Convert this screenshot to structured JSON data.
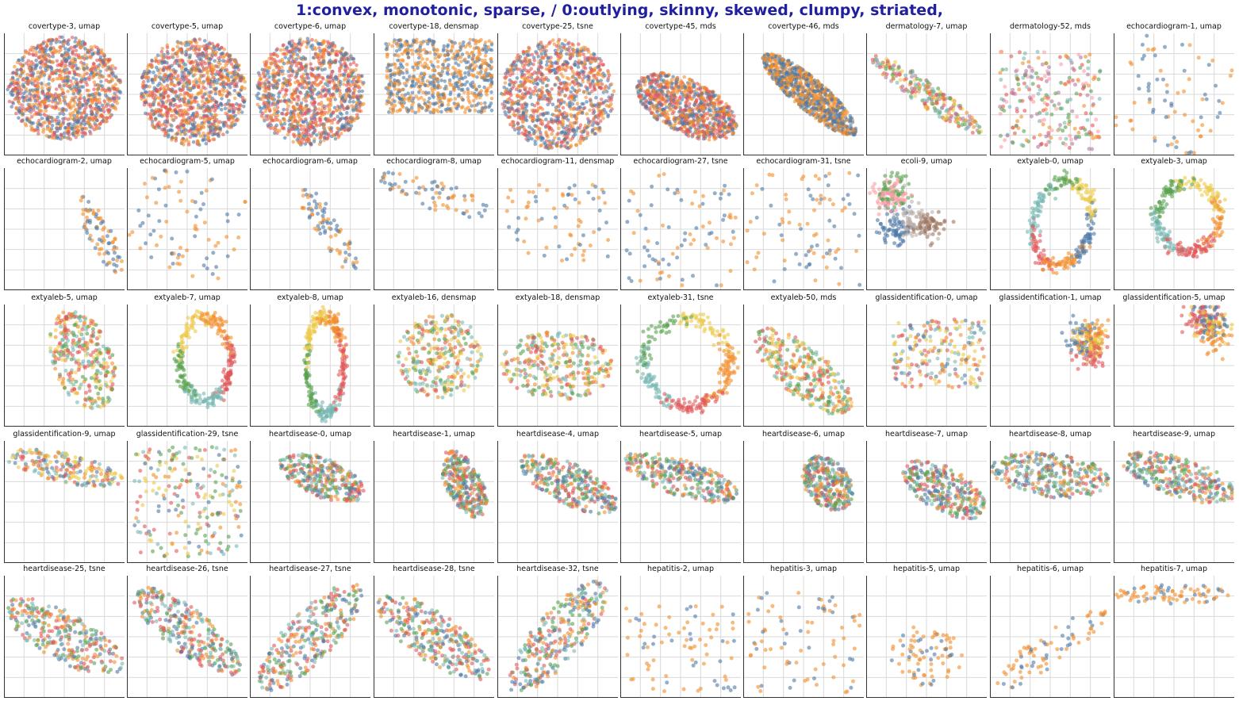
{
  "header": {
    "title": "1:convex, monotonic, sparse,  / 0:outlying, skinny, skewed, clumpy, striated,"
  },
  "colors": {
    "palette": [
      "#4e79a7",
      "#f28e2b",
      "#e15759",
      "#76b7b2",
      "#59a14f",
      "#edc948",
      "#b07aa1",
      "#ff9da7",
      "#9c755f",
      "#bab0ac"
    ],
    "gridline": "#d9d9d9",
    "axis": "#333333",
    "title": "#1f1fa0"
  },
  "chart_data": {
    "type": "scatter",
    "grid": true,
    "point_alpha": 0.6,
    "panels": [
      {
        "title": "covertype-3, umap",
        "shape": "blob",
        "n": 1100,
        "cx": 0.5,
        "cy": 0.45,
        "rx": 0.47,
        "ry": 0.42,
        "rot": 0,
        "colors": [
          0,
          1,
          2
        ]
      },
      {
        "title": "covertype-5, umap",
        "shape": "blob",
        "n": 1100,
        "cx": 0.55,
        "cy": 0.48,
        "rx": 0.44,
        "ry": 0.44,
        "rot": 0,
        "colors": [
          0,
          1,
          2
        ]
      },
      {
        "title": "covertype-6, umap",
        "shape": "blob",
        "n": 1100,
        "cx": 0.5,
        "cy": 0.48,
        "rx": 0.46,
        "ry": 0.44,
        "rot": 0,
        "colors": [
          0,
          1,
          2
        ]
      },
      {
        "title": "covertype-18, densmap",
        "shape": "scatter",
        "n": 700,
        "cx": 0.55,
        "cy": 0.35,
        "rx": 0.45,
        "ry": 0.3,
        "rot": 0,
        "colors": [
          0,
          1
        ]
      },
      {
        "title": "covertype-25, tsne",
        "shape": "blob",
        "n": 1000,
        "cx": 0.5,
        "cy": 0.5,
        "rx": 0.47,
        "ry": 0.45,
        "rot": 0,
        "colors": [
          0,
          1,
          2
        ]
      },
      {
        "title": "covertype-45, mds",
        "shape": "ellipse",
        "n": 900,
        "cx": 0.55,
        "cy": 0.6,
        "rx": 0.45,
        "ry": 0.22,
        "rot": 0.45,
        "colors": [
          0,
          1,
          2
        ]
      },
      {
        "title": "covertype-46, mds",
        "shape": "ellipse",
        "n": 900,
        "cx": 0.55,
        "cy": 0.5,
        "rx": 0.5,
        "ry": 0.13,
        "rot": 0.7,
        "colors": [
          0,
          1
        ]
      },
      {
        "title": "dermatology-7, umap",
        "shape": "ellipse",
        "n": 240,
        "cx": 0.5,
        "cy": 0.5,
        "rx": 0.55,
        "ry": 0.1,
        "rot": 0.6,
        "colors": [
          1,
          2,
          3,
          4,
          5,
          6
        ]
      },
      {
        "title": "dermatology-52, mds",
        "shape": "scatter",
        "n": 240,
        "cx": 0.5,
        "cy": 0.55,
        "rx": 0.42,
        "ry": 0.4,
        "rot": 0,
        "colors": [
          1,
          2,
          3,
          4,
          6,
          7
        ]
      },
      {
        "title": "echocardiogram-1, umap",
        "shape": "scatter",
        "n": 75,
        "cx": 0.5,
        "cy": 0.5,
        "rx": 0.45,
        "ry": 0.45,
        "rot": 0.4,
        "colors": [
          0,
          1
        ]
      },
      {
        "title": "echocardiogram-2, umap",
        "shape": "ellipse",
        "n": 80,
        "cx": 0.8,
        "cy": 0.55,
        "rx": 0.35,
        "ry": 0.1,
        "rot": 1.1,
        "colors": [
          0,
          1
        ]
      },
      {
        "title": "echocardiogram-5, umap",
        "shape": "scatter",
        "n": 80,
        "cx": 0.5,
        "cy": 0.45,
        "rx": 0.45,
        "ry": 0.42,
        "rot": 0.4,
        "colors": [
          0,
          1
        ]
      },
      {
        "title": "echocardiogram-6, umap",
        "shape": "ellipse",
        "n": 80,
        "cx": 0.65,
        "cy": 0.5,
        "rx": 0.4,
        "ry": 0.12,
        "rot": 1.0,
        "colors": [
          0,
          1
        ]
      },
      {
        "title": "echocardiogram-8, umap",
        "shape": "ellipse",
        "n": 70,
        "cx": 0.5,
        "cy": 0.22,
        "rx": 0.5,
        "ry": 0.12,
        "rot": 0.3,
        "colors": [
          0,
          1
        ]
      },
      {
        "title": "echocardiogram-11, densmap",
        "shape": "scatter",
        "n": 70,
        "cx": 0.5,
        "cy": 0.45,
        "rx": 0.42,
        "ry": 0.32,
        "rot": 0,
        "colors": [
          0,
          1
        ]
      },
      {
        "title": "echocardiogram-27, tsne",
        "shape": "scatter",
        "n": 85,
        "cx": 0.5,
        "cy": 0.5,
        "rx": 0.46,
        "ry": 0.46,
        "rot": 0,
        "colors": [
          0,
          1
        ]
      },
      {
        "title": "echocardiogram-31, tsne",
        "shape": "scatter",
        "n": 85,
        "cx": 0.5,
        "cy": 0.5,
        "rx": 0.47,
        "ry": 0.46,
        "rot": 0,
        "colors": [
          0,
          1
        ]
      },
      {
        "title": "ecoli-9, umap",
        "shape": "clusters",
        "n": 330,
        "cx": 0.5,
        "cy": 0.4,
        "rx": 0.45,
        "ry": 0.3,
        "rot": 0,
        "colors": [
          0,
          7,
          4,
          9,
          8
        ]
      },
      {
        "title": "extyaleb-0, umap",
        "shape": "ring",
        "n": 300,
        "cx": 0.6,
        "cy": 0.45,
        "rx": 0.28,
        "ry": 0.42,
        "rot": 0.2,
        "colors": [
          0,
          1,
          2,
          3,
          4,
          5
        ]
      },
      {
        "title": "extyaleb-3, umap",
        "shape": "ring",
        "n": 300,
        "cx": 0.62,
        "cy": 0.4,
        "rx": 0.3,
        "ry": 0.33,
        "rot": 0,
        "colors": [
          1,
          2,
          3,
          4,
          5
        ]
      },
      {
        "title": "extyaleb-5, umap",
        "shape": "ellipse",
        "n": 330,
        "cx": 0.65,
        "cy": 0.45,
        "rx": 0.42,
        "ry": 0.25,
        "rot": 1.2,
        "colors": [
          2,
          3,
          4,
          5,
          1
        ]
      },
      {
        "title": "extyaleb-7, umap",
        "shape": "ring",
        "n": 300,
        "cx": 0.65,
        "cy": 0.45,
        "rx": 0.25,
        "ry": 0.4,
        "rot": 0,
        "colors": [
          2,
          3,
          4,
          5,
          1
        ]
      },
      {
        "title": "extyaleb-8, umap",
        "shape": "ring",
        "n": 320,
        "cx": 0.62,
        "cy": 0.5,
        "rx": 0.18,
        "ry": 0.47,
        "rot": 0,
        "colors": [
          2,
          3,
          4,
          5,
          1
        ]
      },
      {
        "title": "extyaleb-16, densmap",
        "shape": "blob",
        "n": 300,
        "cx": 0.55,
        "cy": 0.42,
        "rx": 0.35,
        "ry": 0.35,
        "rot": 0,
        "colors": [
          1,
          2,
          3,
          4,
          5
        ]
      },
      {
        "title": "extyaleb-18, densmap",
        "shape": "ellipse",
        "n": 320,
        "cx": 0.5,
        "cy": 0.5,
        "rx": 0.47,
        "ry": 0.28,
        "rot": 0,
        "colors": [
          1,
          2,
          3,
          4,
          5
        ]
      },
      {
        "title": "extyaleb-31, tsne",
        "shape": "ring",
        "n": 300,
        "cx": 0.55,
        "cy": 0.48,
        "rx": 0.42,
        "ry": 0.42,
        "rot": 0,
        "colors": [
          1,
          2,
          3,
          4,
          5
        ]
      },
      {
        "title": "extyaleb-50, mds",
        "shape": "ellipse",
        "n": 320,
        "cx": 0.5,
        "cy": 0.55,
        "rx": 0.5,
        "ry": 0.2,
        "rot": 0.7,
        "colors": [
          1,
          2,
          3,
          4,
          5
        ]
      },
      {
        "title": "glassidentification-0, umap",
        "shape": "scatter",
        "n": 210,
        "cx": 0.6,
        "cy": 0.4,
        "rx": 0.38,
        "ry": 0.28,
        "rot": 0,
        "colors": [
          0,
          1,
          2,
          3,
          5
        ]
      },
      {
        "title": "glassidentification-1, umap",
        "shape": "clusters",
        "n": 210,
        "cx": 0.8,
        "cy": 0.27,
        "rx": 0.15,
        "ry": 0.2,
        "rot": 0,
        "colors": [
          0,
          2,
          5,
          1
        ]
      },
      {
        "title": "glassidentification-5, umap",
        "shape": "clusters",
        "n": 210,
        "cx": 0.7,
        "cy": 0.25,
        "rx": 0.25,
        "ry": 0.2,
        "rot": 0,
        "colors": [
          0,
          2,
          5,
          1
        ]
      },
      {
        "title": "glassidentification-9, umap",
        "shape": "ellipse",
        "n": 210,
        "cx": 0.5,
        "cy": 0.22,
        "rx": 0.5,
        "ry": 0.12,
        "rot": 0.2,
        "colors": [
          0,
          1,
          2,
          3,
          5
        ]
      },
      {
        "title": "glassidentification-29, tsne",
        "shape": "scatter",
        "n": 210,
        "cx": 0.5,
        "cy": 0.5,
        "rx": 0.45,
        "ry": 0.45,
        "rot": 0,
        "colors": [
          0,
          1,
          2,
          3,
          5,
          4
        ]
      },
      {
        "title": "heartdisease-0, umap",
        "shape": "ellipse",
        "n": 300,
        "cx": 0.6,
        "cy": 0.3,
        "rx": 0.38,
        "ry": 0.16,
        "rot": 0.4,
        "colors": [
          0,
          1,
          2,
          3,
          4
        ]
      },
      {
        "title": "heartdisease-1, umap",
        "shape": "ellipse",
        "n": 300,
        "cx": 0.75,
        "cy": 0.35,
        "rx": 0.3,
        "ry": 0.15,
        "rot": 1.1,
        "colors": [
          0,
          1,
          2,
          3,
          4
        ]
      },
      {
        "title": "heartdisease-4, umap",
        "shape": "ellipse",
        "n": 300,
        "cx": 0.6,
        "cy": 0.35,
        "rx": 0.45,
        "ry": 0.17,
        "rot": 0.45,
        "colors": [
          0,
          1,
          2,
          3,
          4
        ]
      },
      {
        "title": "heartdisease-5, umap",
        "shape": "ellipse",
        "n": 300,
        "cx": 0.5,
        "cy": 0.3,
        "rx": 0.5,
        "ry": 0.15,
        "rot": 0.3,
        "colors": [
          0,
          1,
          2,
          3,
          4
        ]
      },
      {
        "title": "heartdisease-6, umap",
        "shape": "ellipse",
        "n": 300,
        "cx": 0.7,
        "cy": 0.35,
        "rx": 0.25,
        "ry": 0.18,
        "rot": 0.9,
        "colors": [
          0,
          1,
          2,
          3,
          4
        ]
      },
      {
        "title": "heartdisease-7, umap",
        "shape": "ellipse",
        "n": 300,
        "cx": 0.65,
        "cy": 0.4,
        "rx": 0.38,
        "ry": 0.18,
        "rot": 0.5,
        "colors": [
          0,
          1,
          2,
          3,
          4
        ]
      },
      {
        "title": "heartdisease-8, umap",
        "shape": "ellipse",
        "n": 300,
        "cx": 0.5,
        "cy": 0.28,
        "rx": 0.5,
        "ry": 0.18,
        "rot": 0.1,
        "colors": [
          0,
          1,
          2,
          3,
          4
        ]
      },
      {
        "title": "heartdisease-9, umap",
        "shape": "ellipse",
        "n": 300,
        "cx": 0.55,
        "cy": 0.3,
        "rx": 0.5,
        "ry": 0.16,
        "rot": 0.3,
        "colors": [
          0,
          1,
          2,
          3,
          4
        ]
      },
      {
        "title": "heartdisease-25, tsne",
        "shape": "ellipse",
        "n": 300,
        "cx": 0.5,
        "cy": 0.5,
        "rx": 0.55,
        "ry": 0.2,
        "rot": 0.5,
        "colors": [
          0,
          1,
          2,
          3,
          4
        ]
      },
      {
        "title": "heartdisease-26, tsne",
        "shape": "ellipse",
        "n": 300,
        "cx": 0.5,
        "cy": 0.45,
        "rx": 0.55,
        "ry": 0.18,
        "rot": 0.65,
        "colors": [
          0,
          1,
          2,
          3,
          4
        ]
      },
      {
        "title": "heartdisease-27, tsne",
        "shape": "ellipse",
        "n": 300,
        "cx": 0.5,
        "cy": 0.5,
        "rx": 0.58,
        "ry": 0.2,
        "rot": -0.8,
        "colors": [
          0,
          1,
          2,
          3,
          4
        ]
      },
      {
        "title": "heartdisease-28, tsne",
        "shape": "ellipse",
        "n": 300,
        "cx": 0.5,
        "cy": 0.5,
        "rx": 0.55,
        "ry": 0.2,
        "rot": 0.6,
        "colors": [
          0,
          1,
          2,
          3,
          4
        ]
      },
      {
        "title": "heartdisease-32, tsne",
        "shape": "ellipse",
        "n": 300,
        "cx": 0.5,
        "cy": 0.5,
        "rx": 0.58,
        "ry": 0.2,
        "rot": -0.85,
        "colors": [
          0,
          1,
          2,
          3,
          4
        ]
      },
      {
        "title": "hepatitis-2, umap",
        "shape": "scatter",
        "n": 80,
        "cx": 0.5,
        "cy": 0.6,
        "rx": 0.45,
        "ry": 0.35,
        "rot": 0,
        "colors": [
          1,
          1,
          0
        ]
      },
      {
        "title": "hepatitis-3, umap",
        "shape": "scatter",
        "n": 80,
        "cx": 0.5,
        "cy": 0.55,
        "rx": 0.47,
        "ry": 0.42,
        "rot": 0,
        "colors": [
          1,
          1,
          0
        ]
      },
      {
        "title": "hepatitis-5, umap",
        "shape": "blob",
        "n": 80,
        "cx": 0.5,
        "cy": 0.65,
        "rx": 0.3,
        "ry": 0.25,
        "rot": 0,
        "colors": [
          1,
          1,
          0
        ]
      },
      {
        "title": "hepatitis-6, umap",
        "shape": "ellipse",
        "n": 80,
        "cx": 0.5,
        "cy": 0.6,
        "rx": 0.55,
        "ry": 0.14,
        "rot": -0.6,
        "colors": [
          1,
          1,
          0
        ]
      },
      {
        "title": "hepatitis-7, umap",
        "shape": "ellipse",
        "n": 80,
        "cx": 0.5,
        "cy": 0.15,
        "rx": 0.5,
        "ry": 0.08,
        "rot": 0,
        "colors": [
          1,
          1,
          0
        ]
      }
    ]
  }
}
